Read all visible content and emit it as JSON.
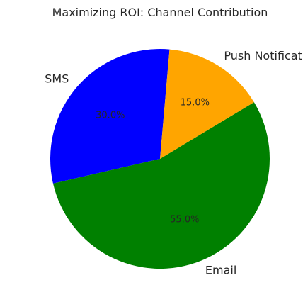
{
  "chart_data": {
    "type": "pie",
    "title": "Maximizing ROI: Channel Contribution",
    "slices": [
      {
        "label": "SMS",
        "value": 30.0,
        "pct_label": "30.0%",
        "color": "#0000ff"
      },
      {
        "label": "Email",
        "value": 55.0,
        "pct_label": "55.0%",
        "color": "#008000"
      },
      {
        "label": "Push Notifications",
        "value": 15.0,
        "pct_label": "15.0%",
        "color": "#ffa500"
      }
    ],
    "start_angle_deg": 85,
    "direction": "counterclockwise",
    "legend": "none"
  }
}
